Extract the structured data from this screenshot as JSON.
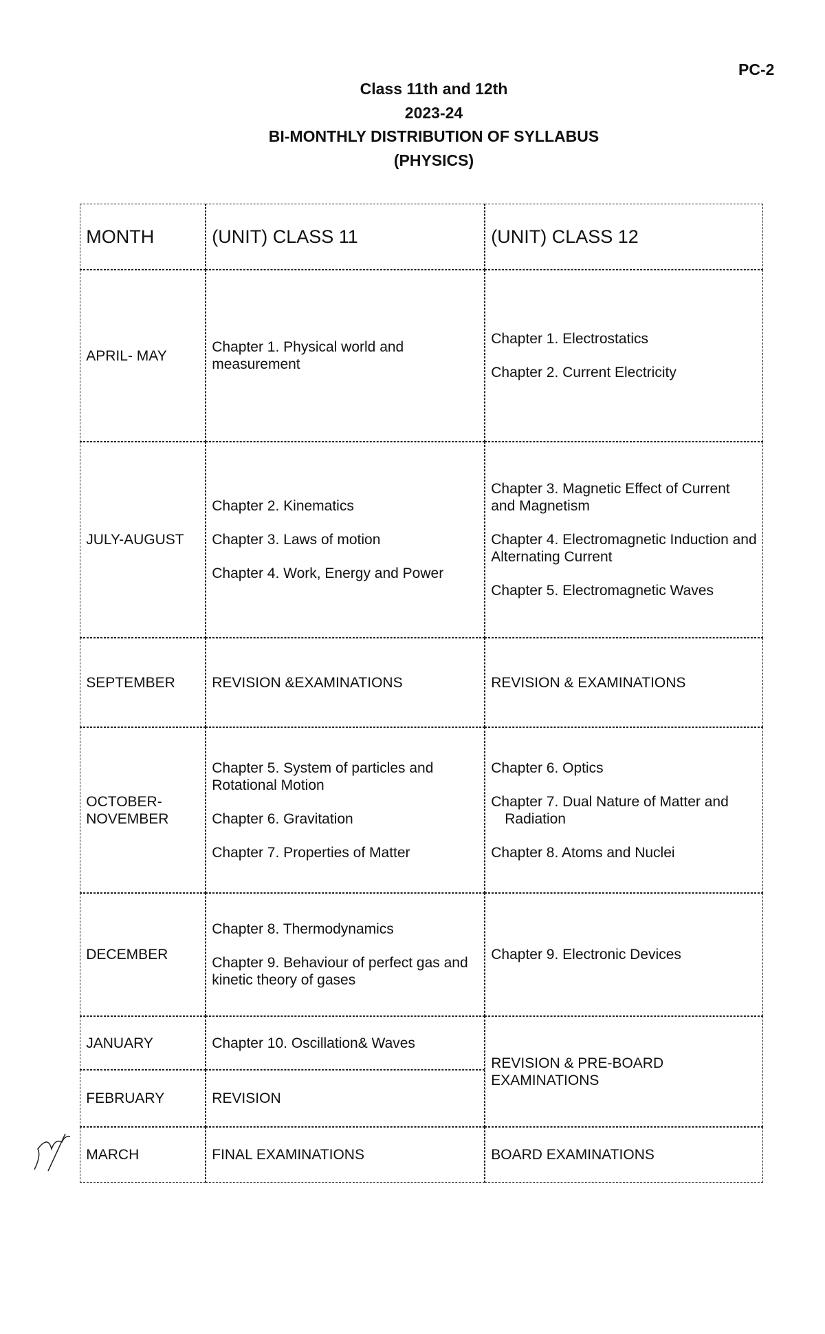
{
  "page_code": "PC-2",
  "header": {
    "line1": "Class 11th and 12th",
    "line2": "2023-24",
    "line3": "BI-MONTHLY DISTRIBUTION OF SYLLABUS",
    "line4": "(PHYSICS)"
  },
  "table": {
    "columns": [
      "MONTH",
      "(UNIT) CLASS 11",
      "(UNIT) CLASS 12"
    ],
    "rows": [
      {
        "month": "APRIL- MAY",
        "class11": [
          "Chapter 1. Physical world and measurement"
        ],
        "class12": [
          "Chapter 1. Electrostatics",
          "Chapter 2. Current Electricity"
        ]
      },
      {
        "month": "JULY-AUGUST",
        "class11": [
          "Chapter 2. Kinematics",
          "Chapter 3. Laws of motion",
          "Chapter 4. Work, Energy and Power"
        ],
        "class12": [
          "Chapter 3. Magnetic Effect of Current and Magnetism",
          "Chapter 4. Electromagnetic Induction and Alternating Current",
          "Chapter 5. Electromagnetic Waves"
        ]
      },
      {
        "month": "SEPTEMBER",
        "class11": [
          "REVISION &EXAMINATIONS"
        ],
        "class12": [
          "REVISION & EXAMINATIONS"
        ]
      },
      {
        "month": "OCTOBER-NOVEMBER",
        "class11": [
          "Chapter 5. System of particles and Rotational Motion",
          "Chapter 6. Gravitation",
          "Chapter 7. Properties of Matter"
        ],
        "class12": [
          "Chapter 6. Optics",
          "Chapter 7. Dual Nature of Matter and",
          "Radiation",
          "Chapter 8. Atoms and Nuclei"
        ]
      },
      {
        "month": "DECEMBER",
        "class11": [
          "Chapter 8. Thermodynamics",
          "Chapter 9. Behaviour of perfect gas and kinetic theory of gases"
        ],
        "class12": [
          "Chapter 9. Electronic Devices"
        ]
      },
      {
        "month": "JANUARY",
        "class11": [
          "Chapter 10. Oscillation& Waves"
        ]
      },
      {
        "month": "FEBRUARY",
        "class11": [
          "REVISION"
        ]
      },
      {
        "month": "MARCH",
        "class11": [
          "FINAL EXAMINATIONS"
        ],
        "class12": [
          "BOARD EXAMINATIONS"
        ]
      }
    ],
    "jan_feb_class12": "REVISION & PRE-BOARD EXAMINATIONS"
  }
}
